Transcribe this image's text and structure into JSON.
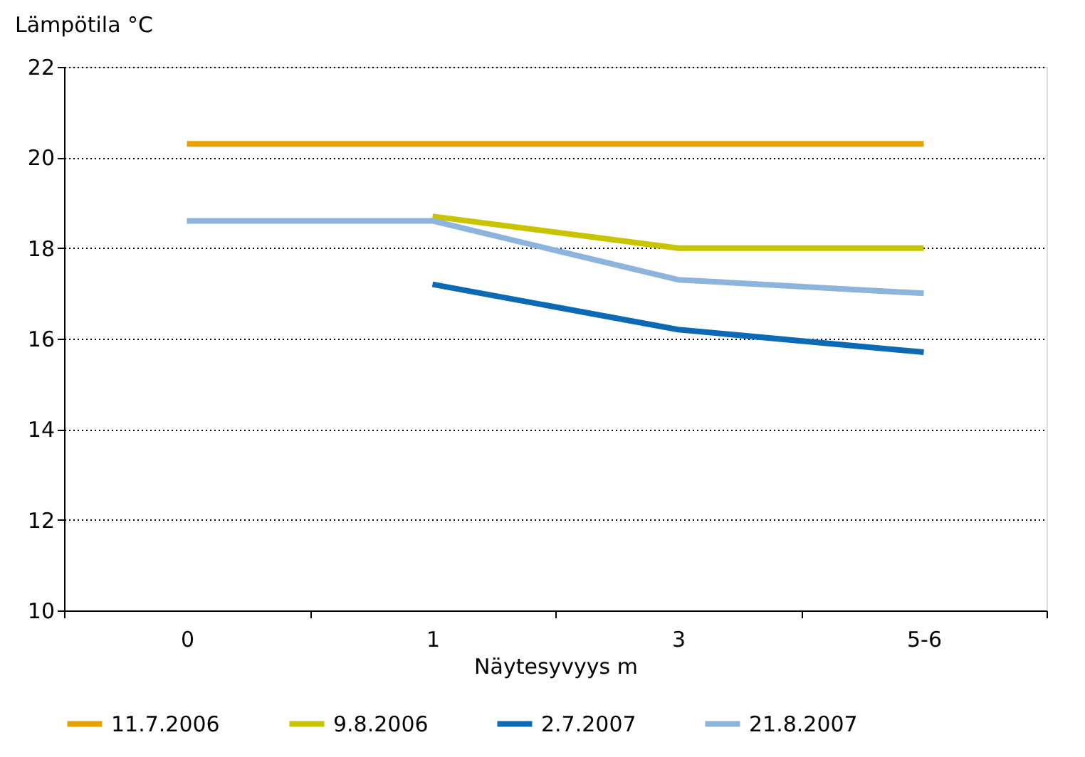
{
  "chart_data": {
    "type": "line",
    "xlabel": "Näytesyvyys m",
    "ylabel": "Lämpötila °C",
    "categories": [
      "0",
      "1",
      "3",
      "5-6"
    ],
    "series": [
      {
        "name": "11.7.2006",
        "color": "#e6a000",
        "values": [
          20.3,
          20.3,
          20.3,
          20.3
        ]
      },
      {
        "name": "9.8.2006",
        "color": "#c8c400",
        "values": [
          null,
          18.7,
          18.0,
          18.0
        ]
      },
      {
        "name": "2.7.2007",
        "color": "#0a6ab5",
        "values": [
          null,
          17.2,
          16.2,
          15.7
        ]
      },
      {
        "name": "21.8.2007",
        "color": "#8cb4dc",
        "values": [
          18.6,
          18.6,
          17.3,
          17.0
        ]
      }
    ],
    "ylim": [
      10,
      22
    ],
    "yticks": [
      10,
      12,
      14,
      16,
      18,
      20,
      22
    ],
    "grid": "y",
    "legend": "bottom",
    "marker": "none",
    "line_style": "solid"
  }
}
